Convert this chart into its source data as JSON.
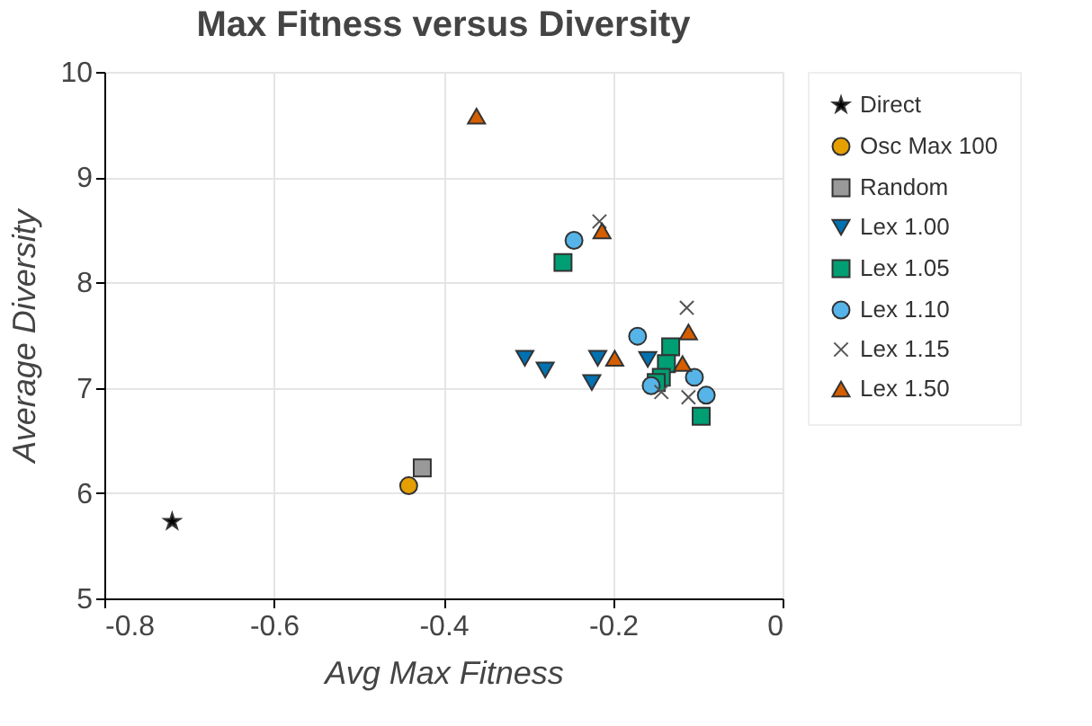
{
  "chart_data": {
    "type": "scatter",
    "title": "Max Fitness versus Diversity",
    "xlabel": "Avg Max Fitness",
    "ylabel": "Average Diversity",
    "xlim": [
      -0.8,
      0
    ],
    "xticks": [
      -0.8,
      -0.6,
      -0.4,
      -0.2,
      {
        "value": 0,
        "label": "0"
      }
    ],
    "ylim": [
      5,
      10
    ],
    "yticks": [
      5,
      6,
      7,
      8,
      9,
      10
    ],
    "grid": true,
    "legend": "right",
    "series": [
      {
        "name": "Direct",
        "color": "#000000",
        "marker": "star",
        "x": [
          -0.72
        ],
        "values": [
          5.73
        ]
      },
      {
        "name": "Osc Max 100",
        "color": "#e69f00",
        "marker": "circle",
        "x": [
          -0.441
        ],
        "values": [
          6.07
        ]
      },
      {
        "name": "Random",
        "color": "#999999",
        "marker": "square",
        "x": [
          -0.425
        ],
        "values": [
          6.24
        ]
      },
      {
        "name": "Lex 1.00",
        "color": "#0072b2",
        "marker": "triangle-down",
        "x": [
          -0.304,
          -0.28,
          -0.218,
          -0.225,
          -0.159
        ],
        "values": [
          7.28,
          7.17,
          7.28,
          7.05,
          7.27
        ]
      },
      {
        "name": "Lex 1.05",
        "color": "#009e73",
        "marker": "square",
        "x": [
          -0.259,
          -0.132,
          -0.137,
          -0.143,
          -0.149,
          -0.096
        ],
        "values": [
          8.19,
          7.39,
          7.23,
          7.1,
          7.05,
          6.73
        ]
      },
      {
        "name": "Lex 1.10",
        "color": "#56b4e9",
        "marker": "circle",
        "x": [
          -0.246,
          -0.171,
          -0.155,
          -0.104,
          -0.09
        ],
        "values": [
          8.4,
          7.49,
          7.02,
          7.1,
          6.93
        ]
      },
      {
        "name": "Lex 1.15",
        "color": "#555555",
        "marker": "cross",
        "x": [
          -0.216,
          -0.113,
          -0.143,
          -0.111
        ],
        "values": [
          8.58,
          7.76,
          6.96,
          6.91
        ]
      },
      {
        "name": "Lex 1.50",
        "color": "#d55e00",
        "marker": "triangle",
        "x": [
          -0.361,
          -0.213,
          -0.198,
          -0.111,
          -0.118
        ],
        "values": [
          9.58,
          8.49,
          7.28,
          7.53,
          7.23
        ]
      }
    ]
  }
}
